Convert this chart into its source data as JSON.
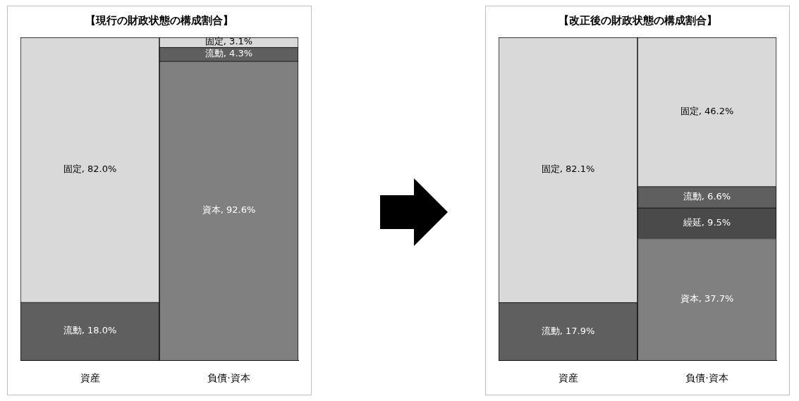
{
  "chart_data": [
    {
      "type": "bar",
      "title": "【現行の財政状態の構成割合】",
      "stacked": true,
      "categories": [
        "資産",
        "負債·資本"
      ],
      "ylim": [
        0,
        100
      ],
      "tick_labels": "x",
      "grid": false,
      "legend": false,
      "series": [
        {
          "name": "資本",
          "color": "#808080",
          "values": [
            null,
            92.6
          ],
          "value_labels": [
            null,
            ", 92.6%"
          ]
        },
        {
          "name": "流動",
          "color": "#5f5f5f",
          "values": [
            18.0,
            4.3
          ],
          "value_labels": [
            ", 18.0%",
            ", 4.3%"
          ]
        },
        {
          "name": "固定",
          "color": "#d9d9d9",
          "values": [
            82.0,
            3.1
          ],
          "value_labels": [
            ", 82.0%",
            ", 3.1%"
          ]
        }
      ]
    },
    {
      "type": "bar",
      "title": "【改正後の財政状態の構成割合】",
      "stacked": true,
      "categories": [
        "資産",
        "負債·資本"
      ],
      "ylim": [
        0,
        100
      ],
      "tick_labels": "x",
      "grid": false,
      "legend": false,
      "series": [
        {
          "name": "資本",
          "color": "#808080",
          "values": [
            null,
            37.7
          ],
          "value_labels": [
            null,
            ", 37.7%"
          ]
        },
        {
          "name": "繰延",
          "color": "#4a4a4a",
          "values": [
            null,
            9.5
          ],
          "value_labels": [
            null,
            ", 9.5%"
          ]
        },
        {
          "name": "流動",
          "color": "#5f5f5f",
          "values": [
            17.9,
            6.6
          ],
          "value_labels": [
            ", 17.9%",
            ", 6.6%"
          ]
        },
        {
          "name": "固定",
          "color": "#d9d9d9",
          "values": [
            82.1,
            46.2
          ],
          "value_labels": [
            ", 82.1%",
            ", 46.2%"
          ]
        }
      ]
    }
  ]
}
